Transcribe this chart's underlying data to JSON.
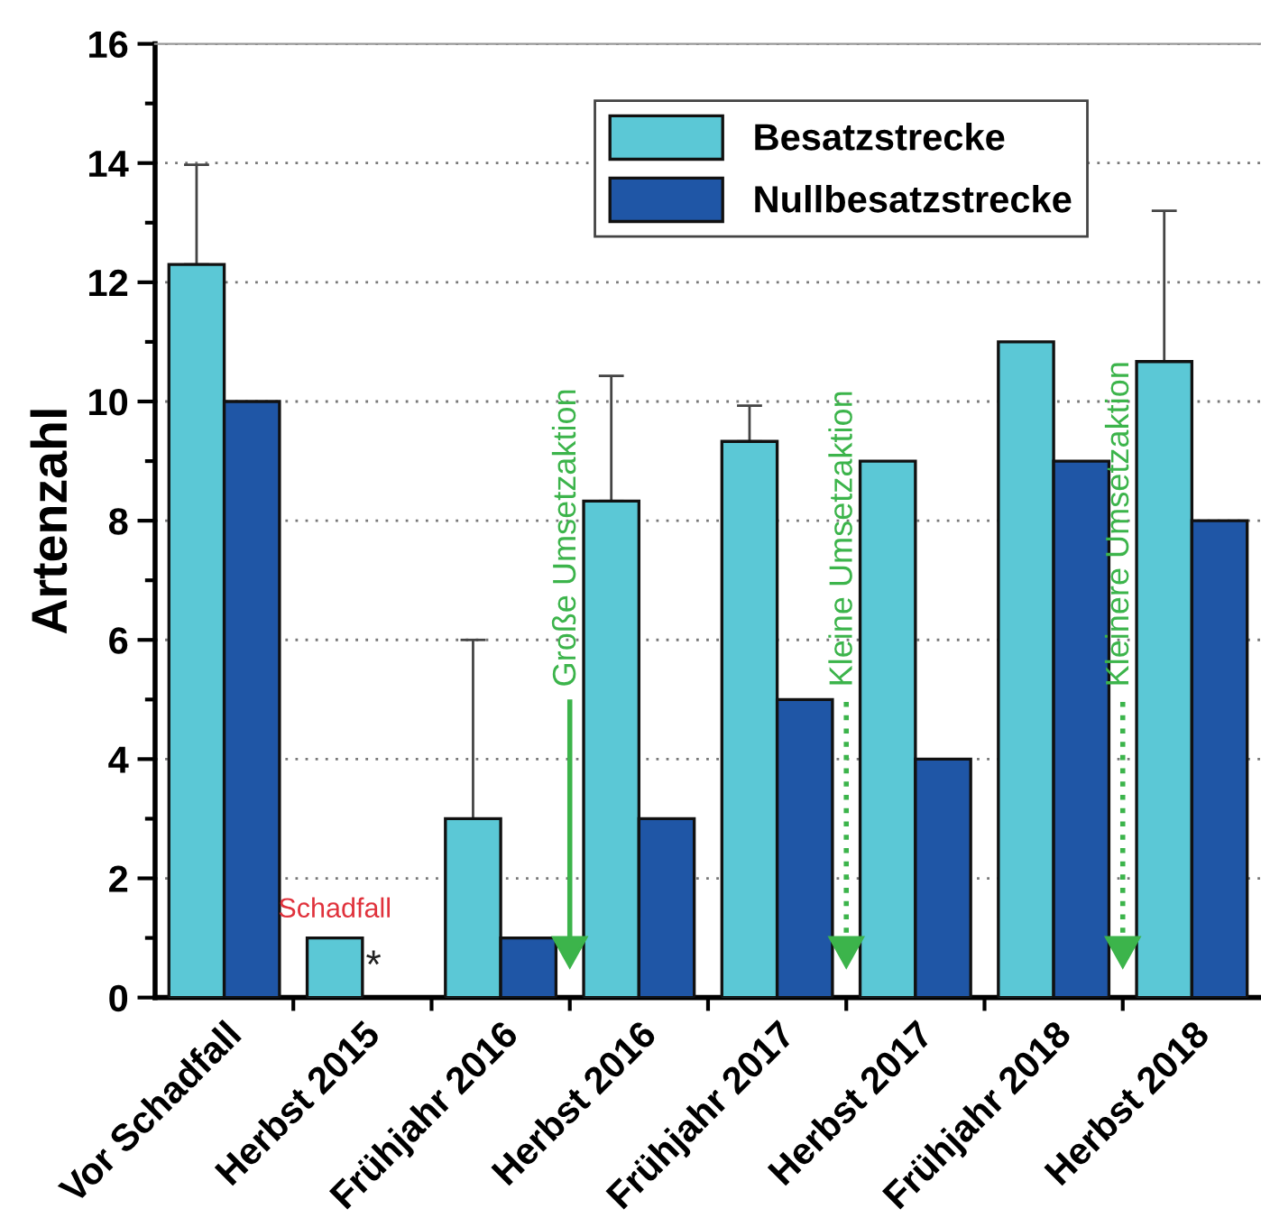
{
  "chart_data": {
    "type": "bar",
    "ylabel": "Artenzahl",
    "categories": [
      "Vor Schadfall",
      "Herbst 2015",
      "Frühjahr 2016",
      "Herbst 2016",
      "Frühjahr 2017",
      "Herbst 2017",
      "Frühjahr 2018",
      "Herbst 2018"
    ],
    "series": [
      {
        "name": "Besatzstrecke",
        "color": "#5bc8d6",
        "values": [
          12.3,
          1,
          3,
          8.33,
          9.33,
          9,
          11,
          10.67
        ],
        "errors": [
          [
            12.3,
            13.97
          ],
          null,
          [
            3,
            6
          ],
          [
            8.33,
            10.43
          ],
          [
            9.33,
            9.93
          ],
          null,
          null,
          [
            10.67,
            13.2
          ]
        ]
      },
      {
        "name": "Nullbesatzstrecke",
        "color": "#1f56a6",
        "values": [
          10,
          null,
          1,
          3,
          5,
          4,
          9,
          8
        ]
      }
    ],
    "ylim": [
      0,
      16
    ],
    "yticks": [
      0,
      2,
      4,
      6,
      8,
      10,
      12,
      14,
      16
    ],
    "grid": "y",
    "legend": "top right",
    "annotations": [
      {
        "text": "Schadfall",
        "x": "Herbst 2015",
        "y": 1
      },
      {
        "text": "*",
        "x": "Herbst 2015",
        "y": 0
      }
    ],
    "ref_lines": [
      {
        "axis": "x",
        "value": "Herbst 2016",
        "label": "Große Umsetzaktion",
        "color": "#3cb44b",
        "line_style": "solid"
      },
      {
        "axis": "x",
        "value": "Herbst 2017",
        "label": "Kleine Umsetzaktion",
        "color": "#3cb44b",
        "line_style": "dotted"
      },
      {
        "axis": "x",
        "value": "Herbst 2018",
        "label": "Kleinere Umsetzaktion",
        "color": "#3cb44b",
        "line_style": "dotted"
      }
    ]
  }
}
